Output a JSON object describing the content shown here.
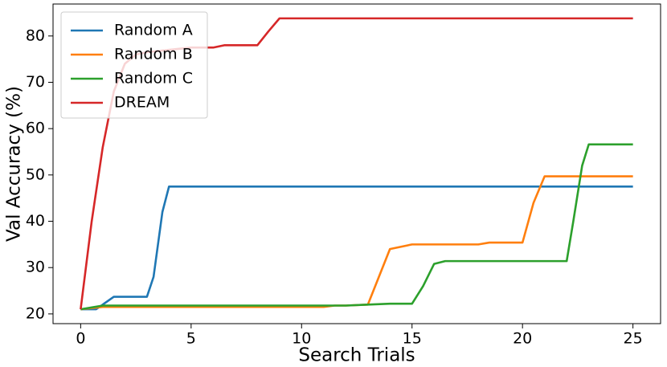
{
  "chart_data": {
    "type": "line",
    "xlabel": "Search Trials",
    "ylabel": "Val Accuracy (%)",
    "xlim": [
      -1.25,
      26.25
    ],
    "ylim": [
      17.9,
      86.9
    ],
    "xticks": [
      0,
      5,
      10,
      15,
      20,
      25
    ],
    "yticks": [
      20,
      30,
      40,
      50,
      60,
      70,
      80
    ],
    "legend": "upper left",
    "series": [
      {
        "name": "Random A",
        "color": "#1f77b4",
        "x": [
          0,
          0.7,
          1.5,
          3,
          3.3,
          3.7,
          4,
          25
        ],
        "values": [
          21,
          21,
          23.7,
          23.7,
          28,
          42,
          47.5,
          47.5
        ]
      },
      {
        "name": "Random B",
        "color": "#ff7f0e",
        "x": [
          0,
          1,
          11,
          11.5,
          12,
          13,
          13.5,
          14,
          15,
          18,
          18.5,
          20,
          20.5,
          21,
          25
        ],
        "values": [
          21,
          21.5,
          21.5,
          21.8,
          21.8,
          22,
          28,
          34,
          35,
          35,
          35.4,
          35.4,
          44,
          49.7,
          49.7
        ]
      },
      {
        "name": "Random C",
        "color": "#2ca02c",
        "x": [
          0,
          1,
          12,
          13,
          14,
          15,
          15.5,
          16,
          16.5,
          22,
          22.3,
          22.7,
          23,
          25
        ],
        "values": [
          21,
          21.8,
          21.8,
          22,
          22.2,
          22.2,
          26,
          30.8,
          31.4,
          31.4,
          40,
          52,
          56.6,
          56.6
        ]
      },
      {
        "name": "DREAM",
        "color": "#d62728",
        "x": [
          0,
          0.5,
          1,
          1.5,
          2,
          2.5,
          3,
          4,
          5,
          6,
          6.5,
          8,
          8.5,
          9,
          25
        ],
        "values": [
          21,
          40,
          56,
          68,
          74,
          76,
          76.5,
          77,
          77.5,
          77.5,
          78,
          78,
          81,
          83.8,
          83.8
        ]
      }
    ]
  }
}
